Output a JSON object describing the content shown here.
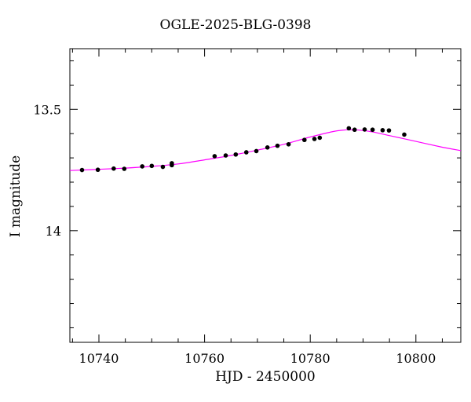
{
  "chart_data": {
    "type": "scatter",
    "title": "OGLE-2025-BLG-0398",
    "xlabel": "HJD - 2450000",
    "ylabel": "I magnitude",
    "xlim": [
      10734.5,
      10808.5
    ],
    "ylim": [
      14.46,
      13.25
    ],
    "y_inverted": true,
    "x_ticks": [
      10740,
      10760,
      10780,
      10800
    ],
    "x_tick_labels": [
      "10740",
      "10760",
      "10780",
      "10800"
    ],
    "y_ticks": [
      13.5,
      14
    ],
    "y_tick_labels": [
      "13.5",
      "14"
    ],
    "grid": false,
    "colors": {
      "points": "#000000",
      "model": "#ff00ff",
      "axes": "#000000"
    },
    "series": [
      {
        "kind": "points",
        "x": [
          10736.8,
          10739.8,
          10742.8,
          10744.8,
          10748.2,
          10750.0,
          10752.1,
          10753.8,
          10753.8,
          10761.9,
          10764.0,
          10765.9,
          10767.9,
          10769.8,
          10771.9,
          10773.8,
          10775.9,
          10778.9,
          10780.8,
          10781.8,
          10787.3,
          10788.4,
          10790.3,
          10791.8,
          10793.7,
          10794.9,
          10797.8
        ],
        "y": [
          13.75,
          13.749,
          13.744,
          13.745,
          13.735,
          13.733,
          13.737,
          13.73,
          13.722,
          13.693,
          13.69,
          13.686,
          13.677,
          13.672,
          13.657,
          13.65,
          13.644,
          13.626,
          13.622,
          13.617,
          13.578,
          13.584,
          13.583,
          13.584,
          13.586,
          13.587,
          13.604
        ]
      },
      {
        "kind": "model",
        "x": [
          10734.5,
          10740,
          10745,
          10750,
          10755,
          10760,
          10765,
          10770,
          10775,
          10780,
          10784,
          10786,
          10788,
          10790,
          10792,
          10795,
          10800,
          10805,
          10808.5
        ],
        "y": [
          13.752,
          13.747,
          13.742,
          13.735,
          13.725,
          13.708,
          13.69,
          13.668,
          13.644,
          13.614,
          13.593,
          13.586,
          13.584,
          13.587,
          13.594,
          13.608,
          13.632,
          13.656,
          13.67
        ]
      }
    ]
  }
}
